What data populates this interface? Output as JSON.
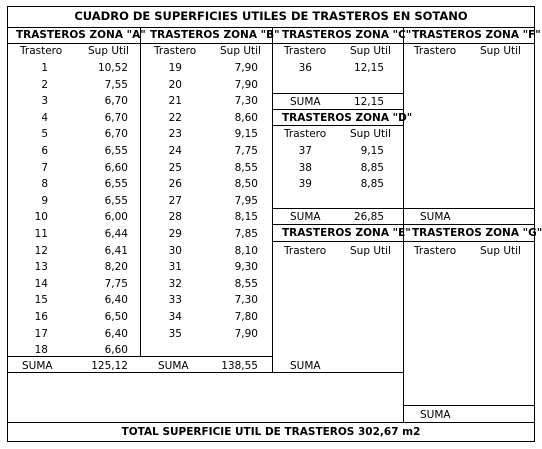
{
  "title": "CUADRO DE SUPERFICIES UTILES DE TRASTEROS EN SOTANO",
  "col_trastero": "Trastero",
  "col_sup": "Sup Util",
  "suma_label": "SUMA",
  "zones": {
    "A": {
      "header": "TRASTEROS ZONA \"A\"",
      "rows": [
        [
          "1",
          "10,52"
        ],
        [
          "2",
          "7,55"
        ],
        [
          "3",
          "6,70"
        ],
        [
          "4",
          "6,70"
        ],
        [
          "5",
          "6,70"
        ],
        [
          "6",
          "6,55"
        ],
        [
          "7",
          "6,60"
        ],
        [
          "8",
          "6,55"
        ],
        [
          "9",
          "6,55"
        ],
        [
          "10",
          "6,00"
        ],
        [
          "11",
          "6,44"
        ],
        [
          "12",
          "6,41"
        ],
        [
          "13",
          "8,20"
        ],
        [
          "14",
          "7,75"
        ],
        [
          "15",
          "6,40"
        ],
        [
          "16",
          "6,50"
        ],
        [
          "17",
          "6,40"
        ],
        [
          "18",
          "6,60"
        ]
      ],
      "suma": "125,12"
    },
    "B": {
      "header": "TRASTEROS ZONA \"B\"",
      "rows": [
        [
          "19",
          "7,90"
        ],
        [
          "20",
          "7,90"
        ],
        [
          "21",
          "7,30"
        ],
        [
          "22",
          "8,60"
        ],
        [
          "23",
          "9,15"
        ],
        [
          "24",
          "7,75"
        ],
        [
          "25",
          "8,55"
        ],
        [
          "26",
          "8,50"
        ],
        [
          "27",
          "7,95"
        ],
        [
          "28",
          "8,15"
        ],
        [
          "29",
          "7,85"
        ],
        [
          "30",
          "8,10"
        ],
        [
          "31",
          "9,30"
        ],
        [
          "32",
          "8,55"
        ],
        [
          "33",
          "7,30"
        ],
        [
          "34",
          "7,80"
        ],
        [
          "35",
          "7,90"
        ]
      ],
      "suma": "138,55"
    },
    "C": {
      "header": "TRASTEROS ZONA \"C\"",
      "rows": [
        [
          "36",
          "12,15"
        ]
      ],
      "suma": "12,15"
    },
    "D": {
      "header": "TRASTEROS ZONA \"D\"",
      "rows": [
        [
          "37",
          "9,15"
        ],
        [
          "38",
          "8,85"
        ],
        [
          "39",
          "8,85"
        ]
      ],
      "suma": "26,85"
    },
    "E": {
      "header": "TRASTEROS ZONA \"E\"",
      "rows": [],
      "suma": ""
    },
    "F": {
      "header": "TRASTEROS ZONA \"F\"",
      "rows": [],
      "suma": ""
    },
    "G": {
      "header": "TRASTEROS ZONA \"G\"",
      "rows": [],
      "suma": ""
    }
  },
  "total": "TOTAL SUPERFICIE UTIL DE TRASTEROS  302,67 m2"
}
